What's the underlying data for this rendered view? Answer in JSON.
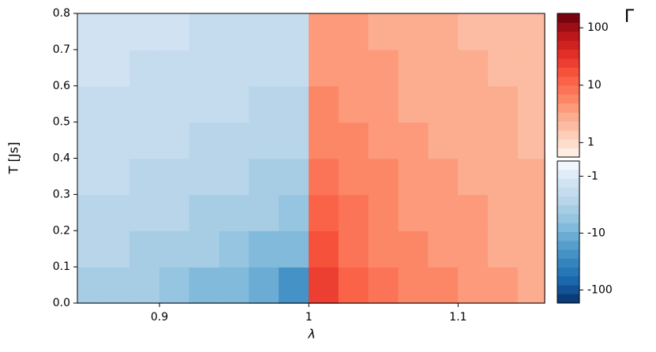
{
  "chart_data": {
    "type": "contour",
    "xlabel": "λ",
    "ylabel": "T [Js]",
    "xlim": [
      0.845,
      1.158
    ],
    "xticks": [
      0.9,
      1,
      1.1
    ],
    "ylim": [
      0,
      0.8
    ],
    "yticks": [
      {
        "value": 0,
        "label": "0.0"
      },
      0.1,
      0.2,
      0.3,
      0.4,
      0.5,
      0.6,
      0.7,
      0.8
    ],
    "x": [
      0.85,
      0.87,
      0.89,
      0.91,
      0.93,
      0.95,
      0.97,
      0.99,
      1.01,
      1.03,
      1.05,
      1.07,
      1.09,
      1.11,
      1.13,
      1.15
    ],
    "y": [
      0.05,
      0.15,
      0.25,
      0.35,
      0.45,
      0.55,
      0.65,
      0.75
    ],
    "z": [
      [
        -3.5,
        -4.0,
        -4.6,
        -5.5,
        -6.7,
        -8.6,
        -12,
        -20,
        28.6,
        13.3,
        8.7,
        6.5,
        5.1,
        4.3,
        3.6,
        3.2
      ],
      [
        -2.9,
        -3.2,
        -3.5,
        -4.0,
        -4.6,
        -5.5,
        -6.7,
        -8.6,
        15.4,
        9.5,
        6.9,
        5.4,
        4.4,
        3.8,
        3.3,
        2.9
      ],
      [
        -2.4,
        -2.6,
        -2.9,
        -3.2,
        -3.5,
        -4.0,
        -4.6,
        -5.5,
        10.5,
        7.4,
        5.7,
        4.7,
        3.9,
        3.4,
        3.0,
        2.7
      ],
      [
        -2.1,
        -2.2,
        -2.4,
        -2.6,
        -2.9,
        -3.2,
        -3.5,
        -4.0,
        8.0,
        6.1,
        4.9,
        4.1,
        3.5,
        3.1,
        2.7,
        2.5
      ],
      [
        -1.8,
        -1.9,
        -2.1,
        -2.2,
        -2.4,
        -2.6,
        -2.9,
        -3.2,
        6.5,
        5.1,
        4.3,
        3.6,
        3.2,
        2.8,
        2.5,
        2.3
      ],
      [
        -1.6,
        -1.7,
        -1.8,
        -1.9,
        -2.1,
        -2.2,
        -2.4,
        -2.6,
        5.4,
        4.4,
        3.8,
        3.3,
        2.9,
        2.6,
        2.4,
        2.2
      ],
      [
        -1.5,
        -1.5,
        -1.6,
        -1.7,
        -1.8,
        -1.9,
        -2.1,
        -2.2,
        4.7,
        3.9,
        3.4,
        3.0,
        2.7,
        2.4,
        2.2,
        2.0
      ],
      [
        -1.3,
        -1.4,
        -1.5,
        -1.5,
        -1.6,
        -1.7,
        -1.8,
        -1.9,
        4.1,
        3.5,
        3.1,
        2.7,
        2.5,
        2.3,
        2.1,
        1.9
      ]
    ],
    "colorbar": {
      "title": "Γ",
      "levels": 16,
      "positive_lim": [
        0.56,
        178
      ],
      "negative_lim": [
        -0.54,
        -170
      ],
      "ticks": [
        100,
        10,
        1,
        -1,
        -10,
        -100
      ]
    }
  }
}
